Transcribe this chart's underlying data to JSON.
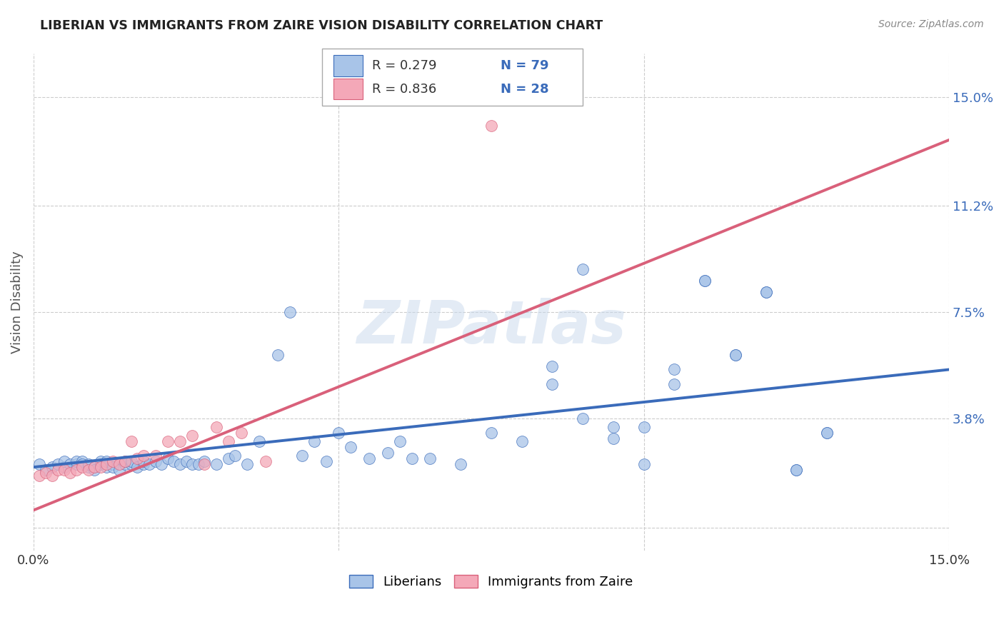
{
  "title": "LIBERIAN VS IMMIGRANTS FROM ZAIRE VISION DISABILITY CORRELATION CHART",
  "source": "Source: ZipAtlas.com",
  "ylabel": "Vision Disability",
  "yticks": [
    0.0,
    0.038,
    0.075,
    0.112,
    0.15
  ],
  "ytick_labels": [
    "",
    "3.8%",
    "7.5%",
    "11.2%",
    "15.0%"
  ],
  "xlim": [
    0.0,
    0.15
  ],
  "ylim": [
    -0.008,
    0.165
  ],
  "legend_R1": "R = 0.279",
  "legend_N1": "N = 79",
  "legend_R2": "R = 0.836",
  "legend_N2": "N = 28",
  "color_blue": "#a8c4e8",
  "color_pink": "#f4a8b8",
  "line_color_blue": "#3a6bba",
  "line_color_pink": "#d9607a",
  "watermark": "ZIPatlas",
  "blue_scatter_x": [
    0.001,
    0.002,
    0.003,
    0.004,
    0.005,
    0.005,
    0.006,
    0.007,
    0.007,
    0.008,
    0.008,
    0.009,
    0.009,
    0.01,
    0.01,
    0.011,
    0.011,
    0.012,
    0.012,
    0.013,
    0.013,
    0.014,
    0.015,
    0.015,
    0.016,
    0.016,
    0.017,
    0.018,
    0.018,
    0.019,
    0.02,
    0.021,
    0.022,
    0.023,
    0.024,
    0.025,
    0.026,
    0.027,
    0.028,
    0.03,
    0.032,
    0.033,
    0.035,
    0.037,
    0.04,
    0.042,
    0.044,
    0.046,
    0.048,
    0.05,
    0.052,
    0.055,
    0.058,
    0.06,
    0.062,
    0.065,
    0.07,
    0.075,
    0.08,
    0.085,
    0.09,
    0.095,
    0.1,
    0.105,
    0.11,
    0.115,
    0.12,
    0.125,
    0.13,
    0.09,
    0.1,
    0.105,
    0.11,
    0.115,
    0.12,
    0.125,
    0.13,
    0.095,
    0.085
  ],
  "blue_scatter_y": [
    0.022,
    0.02,
    0.021,
    0.022,
    0.021,
    0.023,
    0.022,
    0.022,
    0.023,
    0.023,
    0.022,
    0.021,
    0.022,
    0.021,
    0.02,
    0.022,
    0.023,
    0.021,
    0.023,
    0.022,
    0.021,
    0.02,
    0.022,
    0.023,
    0.022,
    0.023,
    0.021,
    0.022,
    0.023,
    0.022,
    0.023,
    0.022,
    0.024,
    0.023,
    0.022,
    0.023,
    0.022,
    0.022,
    0.023,
    0.022,
    0.024,
    0.025,
    0.022,
    0.03,
    0.06,
    0.075,
    0.025,
    0.03,
    0.023,
    0.033,
    0.028,
    0.024,
    0.026,
    0.03,
    0.024,
    0.024,
    0.022,
    0.033,
    0.03,
    0.056,
    0.09,
    0.031,
    0.022,
    0.05,
    0.086,
    0.06,
    0.082,
    0.02,
    0.033,
    0.038,
    0.035,
    0.055,
    0.086,
    0.06,
    0.082,
    0.02,
    0.033,
    0.035,
    0.05
  ],
  "pink_scatter_x": [
    0.001,
    0.002,
    0.003,
    0.004,
    0.005,
    0.006,
    0.007,
    0.008,
    0.009,
    0.01,
    0.011,
    0.012,
    0.013,
    0.014,
    0.015,
    0.016,
    0.017,
    0.018,
    0.02,
    0.022,
    0.024,
    0.026,
    0.028,
    0.03,
    0.032,
    0.034,
    0.075,
    0.038
  ],
  "pink_scatter_y": [
    0.018,
    0.019,
    0.018,
    0.02,
    0.02,
    0.019,
    0.02,
    0.021,
    0.02,
    0.021,
    0.021,
    0.022,
    0.023,
    0.022,
    0.023,
    0.03,
    0.024,
    0.025,
    0.025,
    0.03,
    0.03,
    0.032,
    0.022,
    0.035,
    0.03,
    0.033,
    0.14,
    0.023
  ],
  "blue_line_x": [
    0.0,
    0.15
  ],
  "blue_line_y": [
    0.021,
    0.055
  ],
  "pink_line_x": [
    0.0,
    0.15
  ],
  "pink_line_y": [
    0.006,
    0.135
  ]
}
